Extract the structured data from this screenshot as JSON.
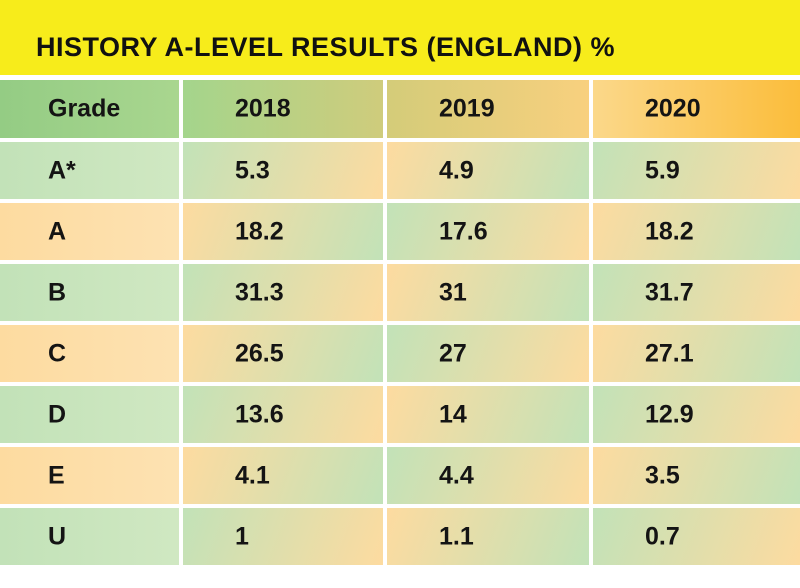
{
  "chart_data": {
    "type": "table",
    "title": "HISTORY A-LEVEL RESULTS (ENGLAND) %",
    "columns": [
      "Grade",
      "2018",
      "2019",
      "2020"
    ],
    "rows": [
      [
        "A*",
        "5.3",
        "4.9",
        "5.9"
      ],
      [
        "A",
        "18.2",
        "17.6",
        "18.2"
      ],
      [
        "B",
        "31.3",
        "31",
        "31.7"
      ],
      [
        "C",
        "26.5",
        "27",
        "27.1"
      ],
      [
        "D",
        "13.6",
        "14",
        "12.9"
      ],
      [
        "E",
        "4.1",
        "4.4",
        "3.5"
      ],
      [
        "U",
        "1",
        "1.1",
        "0.7"
      ]
    ]
  },
  "colors": {
    "title_background": "#f7ec1b",
    "green": "#c2e2b8",
    "orange": "#fddba0",
    "header_green": "#94cc84",
    "header_orange": "#fbbd3b",
    "text": "#141414"
  }
}
